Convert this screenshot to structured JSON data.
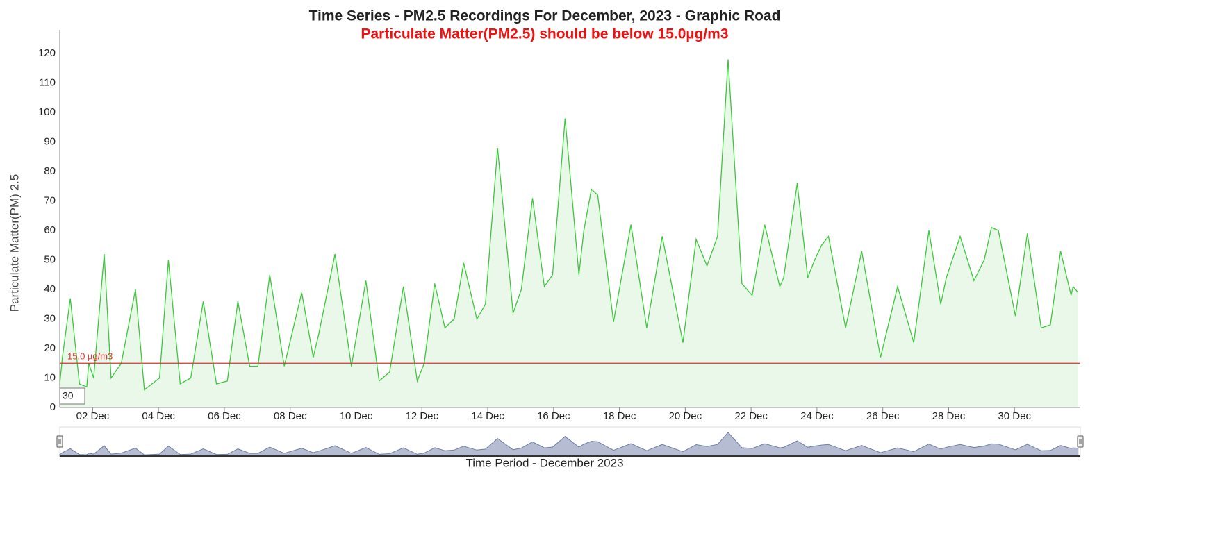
{
  "chart_data": {
    "type": "line",
    "title": "Time Series - PM2.5 Recordings For December, 2023 - Graphic Road",
    "subtitle": "Particulate Matter(PM2.5) should be below 15.0µg/m3",
    "y_label": "Particulate Matter(PM) 2.5",
    "x_label": "Time Period - December 2023",
    "zoom_label": "30",
    "xlim": [
      1,
      32
    ],
    "ylim": [
      0,
      128
    ],
    "xticks": [
      {
        "value": 2,
        "label": "02 Dec"
      },
      {
        "value": 4,
        "label": "04 Dec"
      },
      {
        "value": 6,
        "label": "06 Dec"
      },
      {
        "value": 8,
        "label": "08 Dec"
      },
      {
        "value": 10,
        "label": "10 Dec"
      },
      {
        "value": 12,
        "label": "12 Dec"
      },
      {
        "value": 14,
        "label": "14 Dec"
      },
      {
        "value": 16,
        "label": "16 Dec"
      },
      {
        "value": 18,
        "label": "18 Dec"
      },
      {
        "value": 20,
        "label": "20 Dec"
      },
      {
        "value": 22,
        "label": "22 Dec"
      },
      {
        "value": 24,
        "label": "24 Dec"
      },
      {
        "value": 26,
        "label": "26 Dec"
      },
      {
        "value": 28,
        "label": "28 Dec"
      },
      {
        "value": 30,
        "label": "30 Dec"
      }
    ],
    "yticks": [
      0,
      10,
      20,
      30,
      40,
      50,
      60,
      70,
      80,
      90,
      100,
      110,
      120
    ],
    "threshold": {
      "value": 15,
      "label": "15.0 µg/m3",
      "color": "#e03030"
    },
    "x": [
      1.0,
      1.08,
      1.32,
      1.6,
      1.82,
      1.88,
      2.03,
      2.35,
      2.56,
      2.87,
      3.3,
      3.57,
      4.03,
      4.3,
      4.66,
      4.98,
      5.36,
      5.76,
      6.09,
      6.41,
      6.77,
      7.02,
      7.38,
      7.82,
      8.35,
      8.7,
      8.87,
      9.36,
      9.86,
      10.3,
      10.7,
      11.02,
      11.44,
      11.86,
      12.07,
      12.39,
      12.7,
      12.98,
      13.27,
      13.67,
      13.93,
      14.3,
      14.77,
      15.02,
      15.36,
      15.72,
      15.97,
      16.35,
      16.77,
      16.92,
      17.15,
      17.34,
      17.82,
      18.35,
      18.83,
      19.3,
      19.93,
      20.33,
      20.66,
      20.98,
      21.3,
      21.72,
      22.03,
      22.41,
      22.87,
      22.99,
      23.4,
      23.72,
      23.93,
      24.14,
      24.35,
      24.87,
      25.36,
      25.93,
      26.45,
      26.94,
      27.4,
      27.76,
      27.93,
      28.35,
      28.77,
      29.08,
      29.3,
      29.51,
      30.03,
      30.39,
      30.81,
      31.09,
      31.4,
      31.72,
      31.78,
      31.93
    ],
    "series": [
      {
        "name": "PM2.5",
        "color": "#3cc83c",
        "fill": "#e9f8e9",
        "values": [
          8,
          17,
          37,
          8,
          7,
          15,
          10,
          52,
          10,
          15,
          40,
          6,
          10,
          50,
          8,
          10,
          36,
          8,
          9,
          36,
          14,
          14,
          45,
          14,
          39,
          17,
          25,
          52,
          14,
          43,
          9,
          12,
          41,
          9,
          15,
          42,
          27,
          30,
          49,
          30,
          35,
          88,
          32,
          40,
          71,
          41,
          45,
          98,
          45,
          60,
          74,
          72,
          29,
          62,
          27,
          58,
          22,
          57,
          48,
          58,
          118,
          42,
          38,
          62,
          41,
          44,
          76,
          44,
          50,
          55,
          58,
          27,
          53,
          17,
          41,
          22,
          60,
          35,
          44,
          58,
          43,
          50,
          61,
          60,
          31,
          59,
          27,
          28,
          53,
          38,
          41,
          39
        ]
      }
    ]
  }
}
